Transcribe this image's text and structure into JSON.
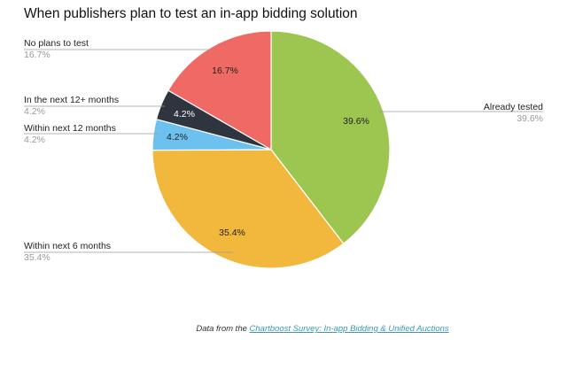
{
  "chart_data": {
    "type": "pie",
    "title": "When publishers plan to test an in-app bidding solution",
    "slices": [
      {
        "label": "Already tested",
        "value": 39.6,
        "display": "39.6%",
        "color": "#9cc650",
        "label_color": "#222222",
        "name": "already-tested"
      },
      {
        "label": "Within next 6 months",
        "value": 35.4,
        "display": "35.4%",
        "color": "#f2b73d",
        "label_color": "#222222",
        "name": "within-next-6-months"
      },
      {
        "label": "Within next 12 months",
        "value": 4.2,
        "display": "4.2%",
        "color": "#6cc1ef",
        "label_color": "#222222",
        "name": "within-next-12-months"
      },
      {
        "label": "In the next 12+ months",
        "value": 4.2,
        "display": "4.2%",
        "color": "#2f353e",
        "label_color": "#ffffff",
        "name": "in-the-next-12-plus-months"
      },
      {
        "label": "No plans to test",
        "value": 16.7,
        "display": "16.7%",
        "color": "#ef6965",
        "label_color": "#222222",
        "name": "no-plans-to-test"
      }
    ]
  },
  "source": {
    "prefix": "Data from the ",
    "link_text": "Chartboost Survey: In-app Bidding & Unified Auctions"
  }
}
